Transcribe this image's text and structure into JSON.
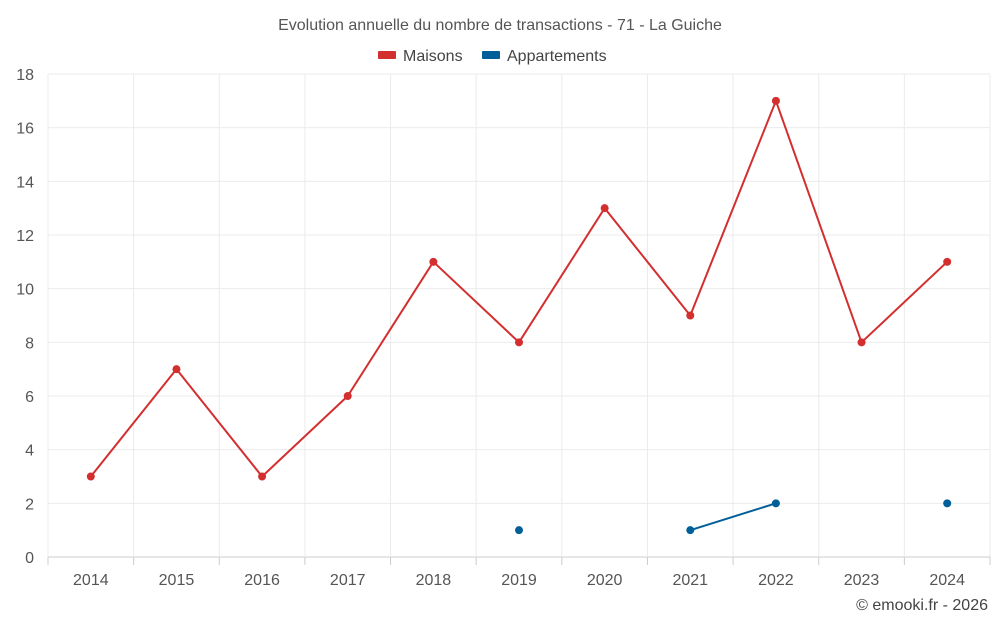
{
  "chart_data": {
    "type": "line",
    "title": "Evolution annuelle du nombre de transactions - 71 - La Guiche",
    "x": [
      2014,
      2015,
      2016,
      2017,
      2018,
      2019,
      2020,
      2021,
      2022,
      2023,
      2024
    ],
    "x_tick_labels": [
      "2014",
      "2015",
      "2016",
      "2017",
      "2018",
      "2019",
      "2020",
      "2021",
      "2022",
      "2023",
      "2024"
    ],
    "ylim": [
      0,
      18
    ],
    "y_ticks": [
      0,
      2,
      4,
      6,
      8,
      10,
      12,
      14,
      16,
      18
    ],
    "y_tick_labels": [
      "0",
      "2",
      "4",
      "6",
      "8",
      "10",
      "12",
      "14",
      "16",
      "18"
    ],
    "grid": true,
    "legend_position": "top-center",
    "series": [
      {
        "name": "Maisons",
        "color": "#d32f2f",
        "values": [
          3,
          7,
          3,
          6,
          11,
          8,
          13,
          9,
          17,
          8,
          11
        ]
      },
      {
        "name": "Appartements",
        "color": "#005f99",
        "values": [
          null,
          null,
          null,
          null,
          null,
          1,
          null,
          1,
          2,
          null,
          2
        ]
      }
    ],
    "credit": "© emooki.fr - 2026"
  }
}
